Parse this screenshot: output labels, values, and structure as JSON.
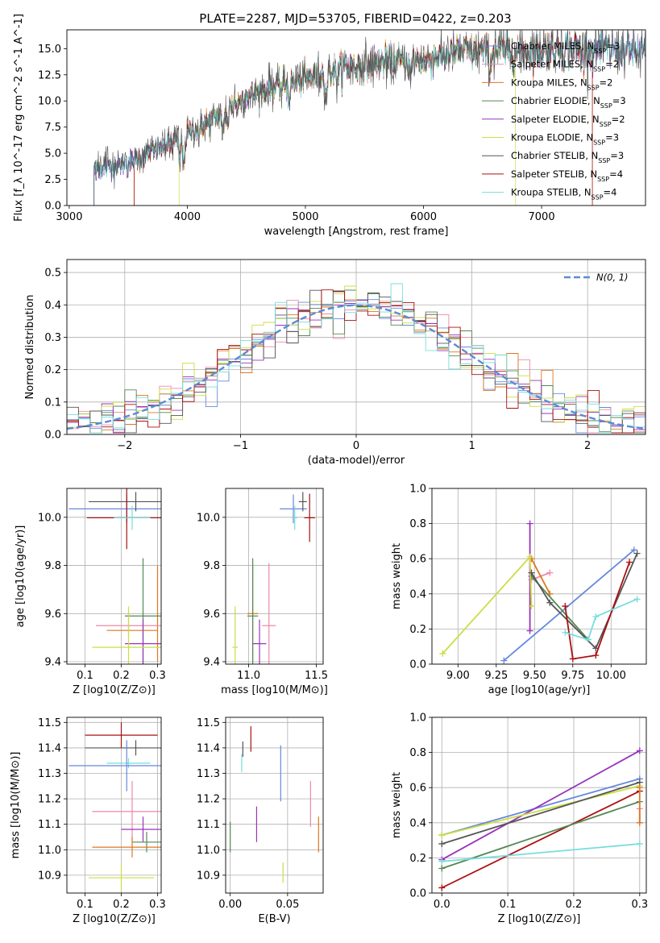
{
  "figure_title": "PLATE=2287, MJD=53705, FIBERID=0422, z=0.203",
  "colors": {
    "Chabrier MILES": "#6688dd",
    "Salpeter MILES": "#ee88aa",
    "Kroupa MILES": "#dd7722",
    "Chabrier ELODIE": "#558855",
    "Salpeter ELODIE": "#9933bb",
    "Kroupa ELODIE": "#ccdd44",
    "Chabrier STELIB": "#555555",
    "Salpeter STELIB": "#aa1111",
    "Kroupa STELIB": "#77dddd",
    "gaussian": "#5b8bd6"
  },
  "legend_spectrum": [
    "Chabrier MILES, N$_{SSP}$=3",
    "Salpeter MILES, N$_{SSP}$=2",
    "Kroupa MILES, N$_{SSP}$=2",
    "Chabrier ELODIE, N$_{SSP}$=3",
    "Salpeter ELODIE, N$_{SSP}$=2",
    "Kroupa ELODIE, N$_{SSP}$=3",
    "Chabrier STELIB, N$_{SSP}$=3",
    "Salpeter STELIB, N$_{SSP}$=4",
    "Kroupa STELIB, N$_{SSP}$=4"
  ],
  "legend_hist": "N(0, 1)",
  "chart_data": [
    {
      "id": "spectrum",
      "type": "line",
      "title": "PLATE=2287, MJD=53705, FIBERID=0422, z=0.203",
      "xlabel": "wavelength [Angstrom, rest frame]",
      "ylabel": "Flux [f_λ 10^-17 erg cm^-2 s^-1 A^-1]",
      "xlim": [
        2980,
        7880
      ],
      "ylim": [
        0,
        16.8
      ],
      "xticks": [
        3000,
        4000,
        5000,
        6000,
        7000
      ],
      "yticks": [
        0.0,
        2.5,
        5.0,
        7.5,
        10.0,
        12.5,
        15.0
      ],
      "continuum": [
        [
          3210,
          3.4
        ],
        [
          3550,
          4.3
        ],
        [
          3950,
          6.5
        ],
        [
          4250,
          8.5
        ],
        [
          4500,
          10.5
        ],
        [
          4900,
          11.8
        ],
        [
          5300,
          13.1
        ],
        [
          5700,
          13.8
        ],
        [
          6000,
          13.9
        ],
        [
          6300,
          14.7
        ],
        [
          6700,
          14.7
        ],
        [
          7100,
          15.0
        ],
        [
          7450,
          14.9
        ],
        [
          7880,
          14.8
        ]
      ],
      "features": [
        [
          3934,
          -2.0
        ],
        [
          3969,
          -2.5
        ],
        [
          4102,
          -1.0
        ],
        [
          4304,
          -2.0
        ],
        [
          4340,
          -1.0
        ],
        [
          4861,
          -1.5
        ],
        [
          5175,
          -2.5
        ],
        [
          5270,
          -1.0
        ],
        [
          5890,
          -1.5
        ],
        [
          6563,
          -1.5
        ]
      ],
      "series_start_wavelength": [
        3210,
        3550,
        3550,
        3210,
        3210,
        3930,
        3210,
        3550,
        3210
      ],
      "series_end_wavelength": [
        7880,
        7880,
        7430,
        7880,
        7880,
        6780,
        7880,
        7430,
        7880
      ]
    },
    {
      "id": "residuals",
      "type": "histogram",
      "xlabel": "(data-model)/error",
      "ylabel": "Normed distribution",
      "xlim": [
        -2.5,
        2.5
      ],
      "ylim": [
        0,
        0.54
      ],
      "xticks": [
        -2,
        -1,
        0,
        1,
        2
      ],
      "yticks": [
        0.0,
        0.1,
        0.2,
        0.3,
        0.4,
        0.5
      ],
      "bin_width": 0.1,
      "gaussian": {
        "mean": 0,
        "sigma": 1
      }
    },
    {
      "id": "age_vs_Z",
      "type": "errorbar",
      "xlabel": "Z [log10(Z/Z⊙)]",
      "ylabel": "age [log10(age/yr)]",
      "xlim": [
        0.05,
        0.31
      ],
      "ylim": [
        9.39,
        10.12
      ],
      "xticks": [
        0.1,
        0.2,
        0.3
      ],
      "yticks": [
        9.4,
        9.6,
        9.8,
        10.0
      ],
      "points": [
        {
          "s": "Chabrier MILES",
          "x": 0.215,
          "xerr": 0.16,
          "y": 10.035,
          "yerr": 0.06
        },
        {
          "s": "Chabrier STELIB",
          "x": 0.24,
          "xerr": 0.13,
          "y": 10.065,
          "yerr": 0.04
        },
        {
          "s": "Salpeter STELIB",
          "x": 0.215,
          "xerr": 0.11,
          "y": 9.998,
          "yerr": 0.13
        },
        {
          "s": "Kroupa STELIB",
          "x": 0.23,
          "xerr": 0.05,
          "y": 9.998,
          "yerr": 0.05
        },
        {
          "s": "Kroupa MILES",
          "x": 0.3,
          "xerr": 0.0,
          "y": 9.6,
          "yerr": 0.2
        },
        {
          "s": "Chabrier ELODIE",
          "x": 0.26,
          "xerr": 0.05,
          "y": 9.59,
          "yerr": 0.24
        },
        {
          "s": "Salpeter MILES",
          "x": 0.22,
          "xerr": 0.09,
          "y": 9.55,
          "yerr": 0.05
        },
        {
          "s": "Kroupa MILES",
          "x": 0.23,
          "xerr": 0.07,
          "y": 9.53,
          "yerr": 0.0
        },
        {
          "s": "Salpeter ELODIE",
          "x": 0.26,
          "xerr": 0.05,
          "y": 9.475,
          "yerr": 0.1
        },
        {
          "s": "Kroupa ELODIE",
          "x": 0.22,
          "xerr": 0.1,
          "y": 9.46,
          "yerr": 0.17
        }
      ]
    },
    {
      "id": "age_vs_mass",
      "type": "errorbar",
      "xlabel": "mass [log10(M/M⊙)]",
      "ylabel": "",
      "xlim": [
        10.83,
        11.55
      ],
      "ylim": [
        9.39,
        10.12
      ],
      "xticks": [
        11.0,
        11.5
      ],
      "yticks": [
        9.4,
        9.6,
        9.8,
        10.0
      ],
      "points": [
        {
          "s": "Chabrier MILES",
          "x": 11.33,
          "xerr": 0.1,
          "y": 10.035,
          "yerr": 0.06
        },
        {
          "s": "Chabrier STELIB",
          "x": 11.4,
          "xerr": 0.03,
          "y": 10.065,
          "yerr": 0.04
        },
        {
          "s": "Salpeter STELIB",
          "x": 11.45,
          "xerr": 0.04,
          "y": 9.998,
          "yerr": 0.1
        },
        {
          "s": "Kroupa STELIB",
          "x": 11.34,
          "xerr": 0.02,
          "y": 9.998,
          "yerr": 0.05
        },
        {
          "s": "Kroupa MILES",
          "x": 11.03,
          "xerr": 0.04,
          "y": 9.6,
          "yerr": 0.2
        },
        {
          "s": "Chabrier ELODIE",
          "x": 11.03,
          "xerr": 0.04,
          "y": 9.59,
          "yerr": 0.24
        },
        {
          "s": "Salpeter MILES",
          "x": 11.15,
          "xerr": 0.05,
          "y": 9.55,
          "yerr": 0.26
        },
        {
          "s": "Salpeter ELODIE",
          "x": 11.08,
          "xerr": 0.05,
          "y": 9.475,
          "yerr": 0.1
        },
        {
          "s": "Kroupa ELODIE",
          "x": 10.9,
          "xerr": 0.02,
          "y": 9.46,
          "yerr": 0.17
        }
      ]
    },
    {
      "id": "weight_vs_age",
      "type": "line",
      "xlabel": "age [log10(age/yr)]",
      "ylabel": "mass weight",
      "xlim": [
        8.83,
        10.23
      ],
      "ylim": [
        0,
        1.0
      ],
      "xticks": [
        9.0,
        9.25,
        9.5,
        9.75,
        10.0
      ],
      "yticks": [
        0.0,
        0.2,
        0.4,
        0.6,
        0.8,
        1.0
      ],
      "series": [
        {
          "s": "Chabrier MILES",
          "points": [
            [
              9.3,
              0.02
            ],
            [
              10.15,
              0.65
            ]
          ]
        },
        {
          "s": "Salpeter MILES",
          "points": [
            [
              9.48,
              0.48
            ],
            [
              9.6,
              0.52
            ]
          ]
        },
        {
          "s": "Kroupa MILES",
          "points": [
            [
              9.48,
              0.6
            ],
            [
              9.6,
              0.4
            ]
          ]
        },
        {
          "s": "Chabrier ELODIE",
          "points": [
            [
              9.48,
              0.5
            ],
            [
              9.85,
              0.14
            ]
          ]
        },
        {
          "s": "Salpeter ELODIE",
          "points": [
            [
              9.47,
              0.8
            ],
            [
              9.47,
              0.19
            ]
          ]
        },
        {
          "s": "Kroupa ELODIE",
          "points": [
            [
              8.9,
              0.06
            ],
            [
              9.47,
              0.61
            ],
            [
              9.48,
              0.33
            ]
          ]
        },
        {
          "s": "Chabrier STELIB",
          "points": [
            [
              9.48,
              0.52
            ],
            [
              9.6,
              0.35
            ],
            [
              9.9,
              0.09
            ],
            [
              10.17,
              0.63
            ]
          ]
        },
        {
          "s": "Salpeter STELIB",
          "points": [
            [
              9.7,
              0.33
            ],
            [
              9.75,
              0.03
            ],
            [
              9.9,
              0.05
            ],
            [
              10.12,
              0.58
            ]
          ]
        },
        {
          "s": "Kroupa STELIB",
          "points": [
            [
              9.7,
              0.18
            ],
            [
              9.85,
              0.14
            ],
            [
              9.9,
              0.27
            ],
            [
              10.17,
              0.37
            ]
          ]
        }
      ]
    },
    {
      "id": "mass_vs_Z",
      "type": "errorbar",
      "xlabel": "Z [log10(Z/Z⊙)]",
      "ylabel": "mass [log10(M/M⊙)]",
      "xlim": [
        0.05,
        0.31
      ],
      "ylim": [
        10.83,
        11.52
      ],
      "xticks": [
        0.1,
        0.2,
        0.3
      ],
      "yticks": [
        10.9,
        11.0,
        11.1,
        11.2,
        11.3,
        11.4,
        11.5
      ],
      "points": [
        {
          "s": "Salpeter STELIB",
          "x": 0.2,
          "xerr": 0.1,
          "y": 11.45,
          "yerr": 0.05
        },
        {
          "s": "Chabrier STELIB",
          "x": 0.24,
          "xerr": 0.14,
          "y": 11.4,
          "yerr": 0.03
        },
        {
          "s": "Kroupa STELIB",
          "x": 0.22,
          "xerr": 0.06,
          "y": 11.34,
          "yerr": 0.02
        },
        {
          "s": "Chabrier MILES",
          "x": 0.215,
          "xerr": 0.16,
          "y": 11.33,
          "yerr": 0.1
        },
        {
          "s": "Salpeter MILES",
          "x": 0.23,
          "xerr": 0.11,
          "y": 11.15,
          "yerr": 0.12
        },
        {
          "s": "Salpeter ELODIE",
          "x": 0.26,
          "xerr": 0.06,
          "y": 11.08,
          "yerr": 0.05
        },
        {
          "s": "Chabrier ELODIE",
          "x": 0.27,
          "xerr": 0.04,
          "y": 11.03,
          "yerr": 0.04
        },
        {
          "s": "Kroupa MILES",
          "x": 0.23,
          "xerr": 0.11,
          "y": 11.01,
          "yerr": 0.04
        },
        {
          "s": "Kroupa ELODIE",
          "x": 0.2,
          "xerr": 0.09,
          "y": 10.89,
          "yerr": 0.05
        }
      ]
    },
    {
      "id": "mass_vs_EBV",
      "type": "errorbar",
      "xlabel": "E(B-V)",
      "ylabel": "",
      "xlim": [
        -0.004,
        0.081
      ],
      "ylim": [
        10.83,
        11.52
      ],
      "xticks": [
        0.0,
        0.05
      ],
      "yticks": [
        10.9,
        11.0,
        11.1,
        11.2,
        11.3,
        11.4,
        11.5
      ],
      "points": [
        {
          "s": "Salpeter STELIB",
          "x": 0.018,
          "xerr": 0,
          "y": 11.435,
          "yerr": 0.05
        },
        {
          "s": "Chabrier STELIB",
          "x": 0.011,
          "xerr": 0,
          "y": 11.395,
          "yerr": 0.03
        },
        {
          "s": "Kroupa STELIB",
          "x": 0.01,
          "xerr": 0,
          "y": 11.34,
          "yerr": 0.035
        },
        {
          "s": "Chabrier MILES",
          "x": 0.044,
          "xerr": 0,
          "y": 11.3,
          "yerr": 0.11
        },
        {
          "s": "Salpeter MILES",
          "x": 0.07,
          "xerr": 0,
          "y": 11.18,
          "yerr": 0.09
        },
        {
          "s": "Salpeter ELODIE",
          "x": 0.023,
          "xerr": 0,
          "y": 11.1,
          "yerr": 0.07
        },
        {
          "s": "Kroupa MILES",
          "x": 0.077,
          "xerr": 0,
          "y": 11.06,
          "yerr": 0.07
        },
        {
          "s": "Chabrier ELODIE",
          "x": 0.0,
          "xerr": 0,
          "y": 11.05,
          "yerr": 0.06
        },
        {
          "s": "Kroupa ELODIE",
          "x": 0.046,
          "xerr": 0,
          "y": 10.91,
          "yerr": 0.04
        }
      ]
    },
    {
      "id": "weight_vs_Z",
      "type": "line",
      "xlabel": "Z [log10(Z/Z⊙)]",
      "ylabel": "mass weight",
      "xlim": [
        -0.015,
        0.31
      ],
      "ylim": [
        0,
        1.0
      ],
      "xticks": [
        0.0,
        0.1,
        0.2,
        0.3
      ],
      "yticks": [
        0.0,
        0.2,
        0.4,
        0.6,
        0.8,
        1.0
      ],
      "series": [
        {
          "s": "Chabrier MILES",
          "points": [
            [
              0.0,
              0.33
            ],
            [
              0.3,
              0.65
            ]
          ]
        },
        {
          "s": "Salpeter ELODIE",
          "points": [
            [
              0.0,
              0.19
            ],
            [
              0.3,
              0.81
            ]
          ]
        },
        {
          "s": "Kroupa ELODIE",
          "points": [
            [
              0.0,
              0.33
            ],
            [
              0.3,
              0.61
            ]
          ]
        },
        {
          "s": "Chabrier STELIB",
          "points": [
            [
              0.0,
              0.28
            ],
            [
              0.3,
              0.63
            ]
          ]
        },
        {
          "s": "Salpeter STELIB",
          "points": [
            [
              0.0,
              0.03
            ],
            [
              0.3,
              0.58
            ]
          ]
        },
        {
          "s": "Chabrier ELODIE",
          "points": [
            [
              0.0,
              0.14
            ],
            [
              0.3,
              0.52
            ]
          ]
        },
        {
          "s": "Kroupa STELIB",
          "points": [
            [
              0.0,
              0.18
            ],
            [
              0.3,
              0.28
            ]
          ]
        },
        {
          "s": "Salpeter MILES",
          "points": [
            [
              0.3,
              0.48
            ],
            [
              0.3,
              0.4
            ]
          ]
        },
        {
          "s": "Kroupa MILES",
          "points": [
            [
              0.3,
              0.4
            ],
            [
              0.3,
              0.6
            ]
          ]
        }
      ],
      "vertical_markers_at_x": 0.3
    }
  ]
}
